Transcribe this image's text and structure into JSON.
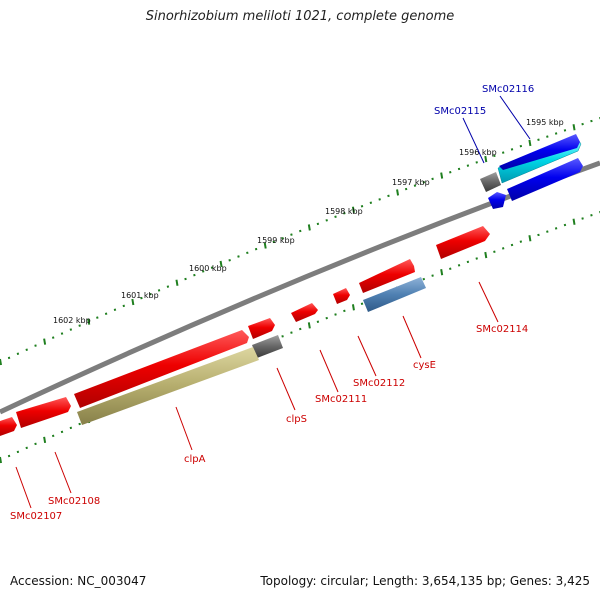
{
  "title": "Sinorhizobium meliloti 1021, complete genome",
  "accession": "Accession: NC_003047",
  "topology": "Topology: circular; Length: 3,654,135 bp; Genes: 3,425",
  "colors": {
    "backbone": "#7d7d7d",
    "gene_red": "#ee0000",
    "gene_blue": "#0000ee",
    "gene_cyan": "#00d8e8",
    "gene_olive": "#b5ad6d",
    "gene_steel": "#4f80b2",
    "gene_gray": "#666666",
    "ticks": "#1f7f1f",
    "label_red": "#cc0000",
    "label_blue": "#0000aa"
  },
  "scale_labels": [
    "1595 kbp",
    "1596 kbp",
    "1597 kbp",
    "1598 kbp",
    "1599 kbp",
    "1600 kbp",
    "1601 kbp",
    "1602 kbp"
  ],
  "genes": [
    {
      "name": "SMc02116",
      "color": "blue"
    },
    {
      "name": "SMc02115",
      "color": "blue"
    },
    {
      "name": "SMc02114",
      "color": "red"
    },
    {
      "name": "cysE",
      "color": "red"
    },
    {
      "name": "SMc02112",
      "color": "red"
    },
    {
      "name": "SMc02111",
      "color": "red"
    },
    {
      "name": "clpS",
      "color": "red"
    },
    {
      "name": "clpA",
      "color": "red"
    },
    {
      "name": "SMc02108",
      "color": "red"
    },
    {
      "name": "SMc02107",
      "color": "red"
    }
  ]
}
